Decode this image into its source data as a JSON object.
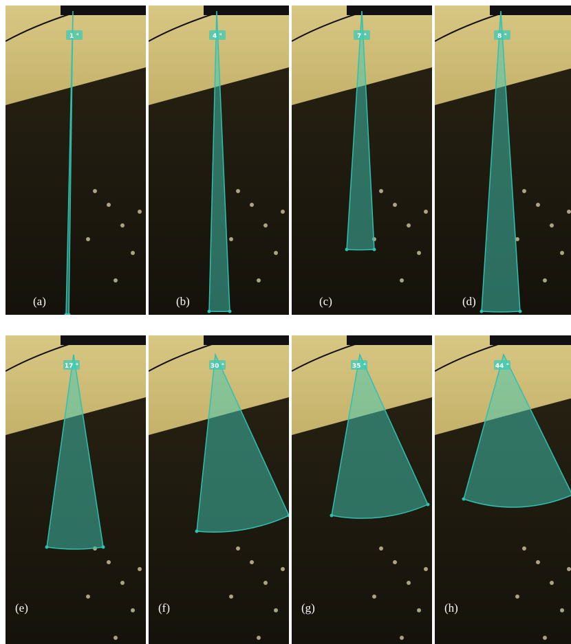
{
  "panels": [
    {
      "label": "(a)",
      "angle": "1 °"
    },
    {
      "label": "(b)",
      "angle": "4 °"
    },
    {
      "label": "(c)",
      "angle": "7 °"
    },
    {
      "label": "(d)",
      "angle": "8 °"
    },
    {
      "label": "(e)",
      "angle": "17 °"
    },
    {
      "label": "(f)",
      "angle": "30 °"
    },
    {
      "label": "(g)",
      "angle": "35 °"
    },
    {
      "label": "(h)",
      "angle": "44 °"
    }
  ]
}
